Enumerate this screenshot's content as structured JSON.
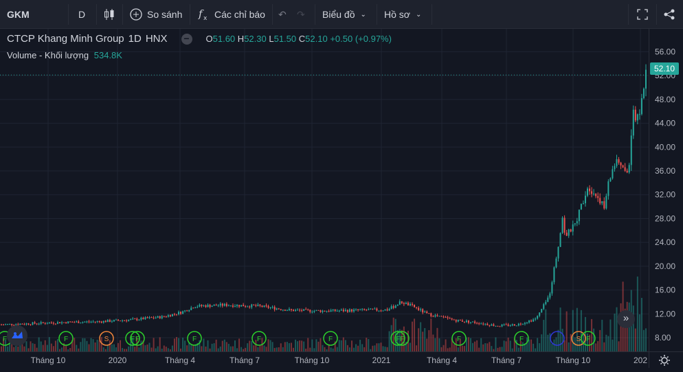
{
  "toolbar": {
    "symbol": "GKM",
    "interval": "D",
    "compare_label": "So sánh",
    "indicators_label": "Các chỉ báo",
    "chart_type_label": "Biểu đồ",
    "profile_label": "Hồ sơ"
  },
  "legend": {
    "name": "CTCP Khang Minh Group",
    "interval": "1D",
    "exchange": "HNX",
    "o_label": "O",
    "o": "51.60",
    "h_label": "H",
    "h": "52.30",
    "l_label": "L",
    "l": "51.50",
    "c_label": "C",
    "c": "52.10",
    "change": "+0.50 (+0.97%)",
    "volume_label": "Volume - Khối lượng",
    "volume": "534.8K"
  },
  "last_price": "52.10",
  "colors": {
    "up": "#26a69a",
    "down": "#ef5350",
    "bg": "#131722",
    "grid": "#1f2433"
  },
  "chart_data": {
    "type": "candlestick",
    "title": "CTCP Khang Minh Group",
    "y_ticks": [
      "56.00",
      "52.00",
      "48.00",
      "44.00",
      "40.00",
      "36.00",
      "32.00",
      "28.00",
      "24.00",
      "20.00",
      "16.00",
      "12.00",
      "8.00"
    ],
    "x_ticks": [
      "Tháng 10",
      "2020",
      "Tháng 4",
      "Tháng 7",
      "Tháng 10",
      "2021",
      "Tháng 4",
      "Tháng 7",
      "Tháng 10",
      "202"
    ],
    "ylim": [
      4,
      58
    ],
    "price_path": [
      [
        0,
        10.2
      ],
      [
        0.05,
        10.4
      ],
      [
        0.1,
        10.6
      ],
      [
        0.15,
        10.7
      ],
      [
        0.2,
        11.0
      ],
      [
        0.25,
        11.5
      ],
      [
        0.28,
        12.3
      ],
      [
        0.3,
        13.3
      ],
      [
        0.35,
        13.5
      ],
      [
        0.4,
        13.3
      ],
      [
        0.45,
        12.6
      ],
      [
        0.5,
        12.5
      ],
      [
        0.55,
        12.6
      ],
      [
        0.6,
        12.7
      ],
      [
        0.62,
        14.0
      ],
      [
        0.64,
        13.2
      ],
      [
        0.66,
        12.0
      ],
      [
        0.7,
        11.0
      ],
      [
        0.74,
        10.5
      ],
      [
        0.77,
        10.0
      ],
      [
        0.8,
        10.2
      ],
      [
        0.83,
        11.2
      ],
      [
        0.85,
        15.0
      ],
      [
        0.865,
        24.0
      ],
      [
        0.87,
        28.5
      ],
      [
        0.875,
        25.0
      ],
      [
        0.89,
        27.0
      ],
      [
        0.91,
        33.5
      ],
      [
        0.93,
        31.0
      ],
      [
        0.935,
        29.5
      ],
      [
        0.94,
        33.0
      ],
      [
        0.95,
        37.0
      ],
      [
        0.96,
        37.5
      ],
      [
        0.965,
        36.0
      ],
      [
        0.97,
        35.5
      ],
      [
        0.975,
        38.0
      ],
      [
        0.98,
        47.0
      ],
      [
        0.985,
        44.0
      ],
      [
        0.99,
        46.0
      ],
      [
        1.0,
        52.1
      ]
    ],
    "markers": [
      {
        "label": "F",
        "color": "#2cd02c"
      },
      {
        "label": "F",
        "color": "#2cd02c"
      },
      {
        "label": "S",
        "color": "#f0853a"
      },
      {
        "label": "F",
        "color": "#2cd02c"
      },
      {
        "label": "F",
        "color": "#2cd02c"
      },
      {
        "label": "F",
        "color": "#2cd02c"
      },
      {
        "label": "F",
        "color": "#2cd02c"
      },
      {
        "label": "F",
        "color": "#2cd02c"
      },
      {
        "label": "F",
        "color": "#2cd02c"
      },
      {
        "label": "F",
        "color": "#2cd02c"
      },
      {
        "label": "F",
        "color": "#2cd02c"
      },
      {
        "label": "F",
        "color": "#2cd02c"
      },
      {
        "label": "",
        "color": "#2f37d8"
      },
      {
        "label": "S",
        "color": "#f0853a"
      },
      {
        "label": "F",
        "color": "#2cd02c"
      }
    ]
  }
}
